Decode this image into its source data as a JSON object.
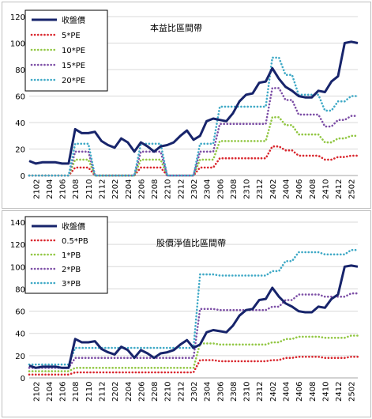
{
  "chart_data": [
    {
      "type": "line",
      "title": "本益比區間帶",
      "ylim": [
        0,
        120
      ],
      "yticks": [
        0,
        20,
        40,
        60,
        80,
        100,
        120
      ],
      "grid": true,
      "legend": "top-left",
      "x": [
        "2101",
        "2102",
        "2103",
        "2104",
        "2105",
        "2106",
        "2107",
        "2108",
        "2109",
        "2110",
        "2111",
        "2112",
        "2201",
        "2202",
        "2203",
        "2204",
        "2205",
        "2206",
        "2207",
        "2208",
        "2209",
        "2210",
        "2211",
        "2212",
        "2301",
        "2302",
        "2303",
        "2304",
        "2305",
        "2306",
        "2307",
        "2308",
        "2309",
        "2310",
        "2311",
        "2312",
        "2401",
        "2402",
        "2403",
        "2404",
        "2405",
        "2406",
        "2407",
        "2408",
        "2409",
        "2410",
        "2411",
        "2412",
        "2501",
        "2502",
        "2503"
      ],
      "xtick_labels": [
        "2102",
        "2104",
        "2106",
        "2108",
        "2110",
        "2112",
        "2202",
        "2204",
        "2206",
        "2208",
        "2210",
        "2212",
        "2302",
        "2304",
        "2306",
        "2308",
        "2310",
        "2312",
        "2402",
        "2404",
        "2406",
        "2408",
        "2410",
        "2412",
        "2502"
      ],
      "series": [
        {
          "name": "收盤價",
          "color": "#17246b",
          "style": "solid",
          "values": [
            11,
            9,
            10,
            10,
            10,
            9,
            9,
            35,
            32,
            32,
            33,
            26,
            23,
            21,
            28,
            25,
            18,
            25,
            22,
            18,
            22,
            23,
            25,
            30,
            34,
            27,
            30,
            41,
            43,
            42,
            41,
            47,
            56,
            61,
            62,
            70,
            71,
            81,
            73,
            67,
            64,
            60,
            59,
            59,
            64,
            63,
            71,
            75,
            100,
            101,
            100
          ]
        },
        {
          "name": "5*PE",
          "color": "#d9272e",
          "style": "dotted",
          "values": [
            0,
            0,
            0,
            0,
            0,
            0,
            0,
            6,
            6,
            6,
            0,
            0,
            0,
            0,
            0,
            0,
            0,
            6,
            6,
            6,
            6,
            0,
            0,
            0,
            0,
            0,
            6,
            6,
            6,
            13,
            13,
            13,
            13,
            13,
            13,
            13,
            13,
            22,
            22,
            19,
            19,
            15,
            15,
            15,
            15,
            12,
            12,
            14,
            14,
            15,
            15
          ]
        },
        {
          "name": "10*PE",
          "color": "#92c744",
          "style": "dotted",
          "values": [
            0,
            0,
            0,
            0,
            0,
            0,
            0,
            12,
            12,
            12,
            0,
            0,
            0,
            0,
            0,
            0,
            0,
            12,
            12,
            12,
            12,
            0,
            0,
            0,
            0,
            0,
            12,
            12,
            12,
            26,
            26,
            26,
            26,
            26,
            26,
            26,
            26,
            44,
            44,
            38,
            38,
            31,
            31,
            31,
            31,
            25,
            25,
            28,
            28,
            30,
            30
          ]
        },
        {
          "name": "15*PE",
          "color": "#7d4fa6",
          "style": "dotted",
          "values": [
            0,
            0,
            0,
            0,
            0,
            0,
            0,
            18,
            18,
            18,
            0,
            0,
            0,
            0,
            0,
            0,
            0,
            18,
            18,
            18,
            18,
            0,
            0,
            0,
            0,
            0,
            18,
            18,
            18,
            39,
            39,
            39,
            39,
            39,
            39,
            39,
            39,
            66,
            66,
            57,
            57,
            46,
            46,
            46,
            46,
            37,
            37,
            42,
            42,
            45,
            45
          ]
        },
        {
          "name": "20*PE",
          "color": "#3fa9c6",
          "style": "dotted",
          "values": [
            0,
            0,
            0,
            0,
            0,
            0,
            0,
            24,
            24,
            24,
            0,
            0,
            0,
            0,
            0,
            0,
            0,
            24,
            24,
            24,
            24,
            0,
            0,
            0,
            0,
            0,
            24,
            24,
            24,
            52,
            52,
            52,
            52,
            52,
            52,
            52,
            52,
            89,
            89,
            76,
            76,
            61,
            61,
            61,
            61,
            49,
            49,
            56,
            56,
            60,
            60
          ]
        }
      ]
    },
    {
      "type": "line",
      "title": "股價淨值比區間帶",
      "ylim": [
        0,
        140
      ],
      "yticks": [
        0,
        20,
        40,
        60,
        80,
        100,
        120,
        140
      ],
      "grid": true,
      "legend": "top-left",
      "x": [
        "2101",
        "2102",
        "2103",
        "2104",
        "2105",
        "2106",
        "2107",
        "2108",
        "2109",
        "2110",
        "2111",
        "2112",
        "2201",
        "2202",
        "2203",
        "2204",
        "2205",
        "2206",
        "2207",
        "2208",
        "2209",
        "2210",
        "2211",
        "2212",
        "2301",
        "2302",
        "2303",
        "2304",
        "2305",
        "2306",
        "2307",
        "2308",
        "2309",
        "2310",
        "2311",
        "2312",
        "2401",
        "2402",
        "2403",
        "2404",
        "2405",
        "2406",
        "2407",
        "2408",
        "2409",
        "2410",
        "2411",
        "2412",
        "2501",
        "2502",
        "2503"
      ],
      "xtick_labels": [
        "2102",
        "2104",
        "2106",
        "2108",
        "2110",
        "2112",
        "2202",
        "2204",
        "2206",
        "2208",
        "2210",
        "2212",
        "2302",
        "2304",
        "2306",
        "2308",
        "2310",
        "2312",
        "2402",
        "2404",
        "2406",
        "2408",
        "2410",
        "2412",
        "2502"
      ],
      "series": [
        {
          "name": "收盤價",
          "color": "#17246b",
          "style": "solid",
          "values": [
            11,
            9,
            10,
            10,
            10,
            9,
            9,
            35,
            32,
            32,
            33,
            26,
            23,
            21,
            28,
            25,
            18,
            25,
            22,
            18,
            22,
            23,
            25,
            30,
            34,
            27,
            30,
            41,
            43,
            42,
            41,
            47,
            56,
            61,
            62,
            70,
            71,
            81,
            73,
            67,
            64,
            60,
            59,
            59,
            64,
            63,
            71,
            75,
            100,
            101,
            100
          ]
        },
        {
          "name": "0.5*PB",
          "color": "#d9272e",
          "style": "dotted",
          "values": [
            3,
            3,
            3,
            3,
            3,
            3,
            3,
            5,
            5,
            5,
            5,
            5,
            5,
            5,
            5,
            5,
            5,
            5,
            5,
            5,
            5,
            5,
            5,
            5,
            5,
            5,
            16,
            16,
            16,
            15,
            15,
            15,
            15,
            15,
            15,
            15,
            15,
            16,
            16,
            18,
            18,
            19,
            19,
            19,
            19,
            18,
            18,
            18,
            18,
            19,
            19
          ]
        },
        {
          "name": "1*PB",
          "color": "#92c744",
          "style": "dotted",
          "values": [
            6,
            6,
            6,
            6,
            6,
            6,
            6,
            9,
            9,
            9,
            9,
            9,
            9,
            9,
            9,
            9,
            9,
            9,
            9,
            9,
            9,
            9,
            9,
            9,
            9,
            9,
            31,
            31,
            31,
            30,
            30,
            30,
            30,
            30,
            30,
            30,
            30,
            32,
            32,
            35,
            35,
            37,
            37,
            37,
            37,
            36,
            36,
            36,
            36,
            38,
            38
          ]
        },
        {
          "name": "2*PB",
          "color": "#7d4fa6",
          "style": "dotted",
          "values": [
            9,
            9,
            9,
            9,
            9,
            9,
            9,
            18,
            18,
            18,
            18,
            18,
            18,
            18,
            18,
            18,
            18,
            18,
            18,
            18,
            18,
            18,
            18,
            18,
            18,
            18,
            62,
            62,
            62,
            61,
            61,
            61,
            61,
            61,
            61,
            61,
            61,
            64,
            64,
            70,
            70,
            75,
            75,
            75,
            75,
            73,
            73,
            73,
            73,
            76,
            76
          ]
        },
        {
          "name": "3*PB",
          "color": "#3fa9c6",
          "style": "dotted",
          "values": [
            12,
            12,
            12,
            12,
            12,
            12,
            12,
            27,
            27,
            27,
            27,
            27,
            27,
            27,
            27,
            27,
            27,
            27,
            27,
            27,
            27,
            27,
            27,
            27,
            27,
            27,
            93,
            93,
            93,
            92,
            92,
            92,
            92,
            92,
            92,
            92,
            92,
            96,
            96,
            105,
            105,
            113,
            113,
            113,
            113,
            111,
            111,
            111,
            111,
            115,
            115
          ]
        }
      ]
    }
  ]
}
